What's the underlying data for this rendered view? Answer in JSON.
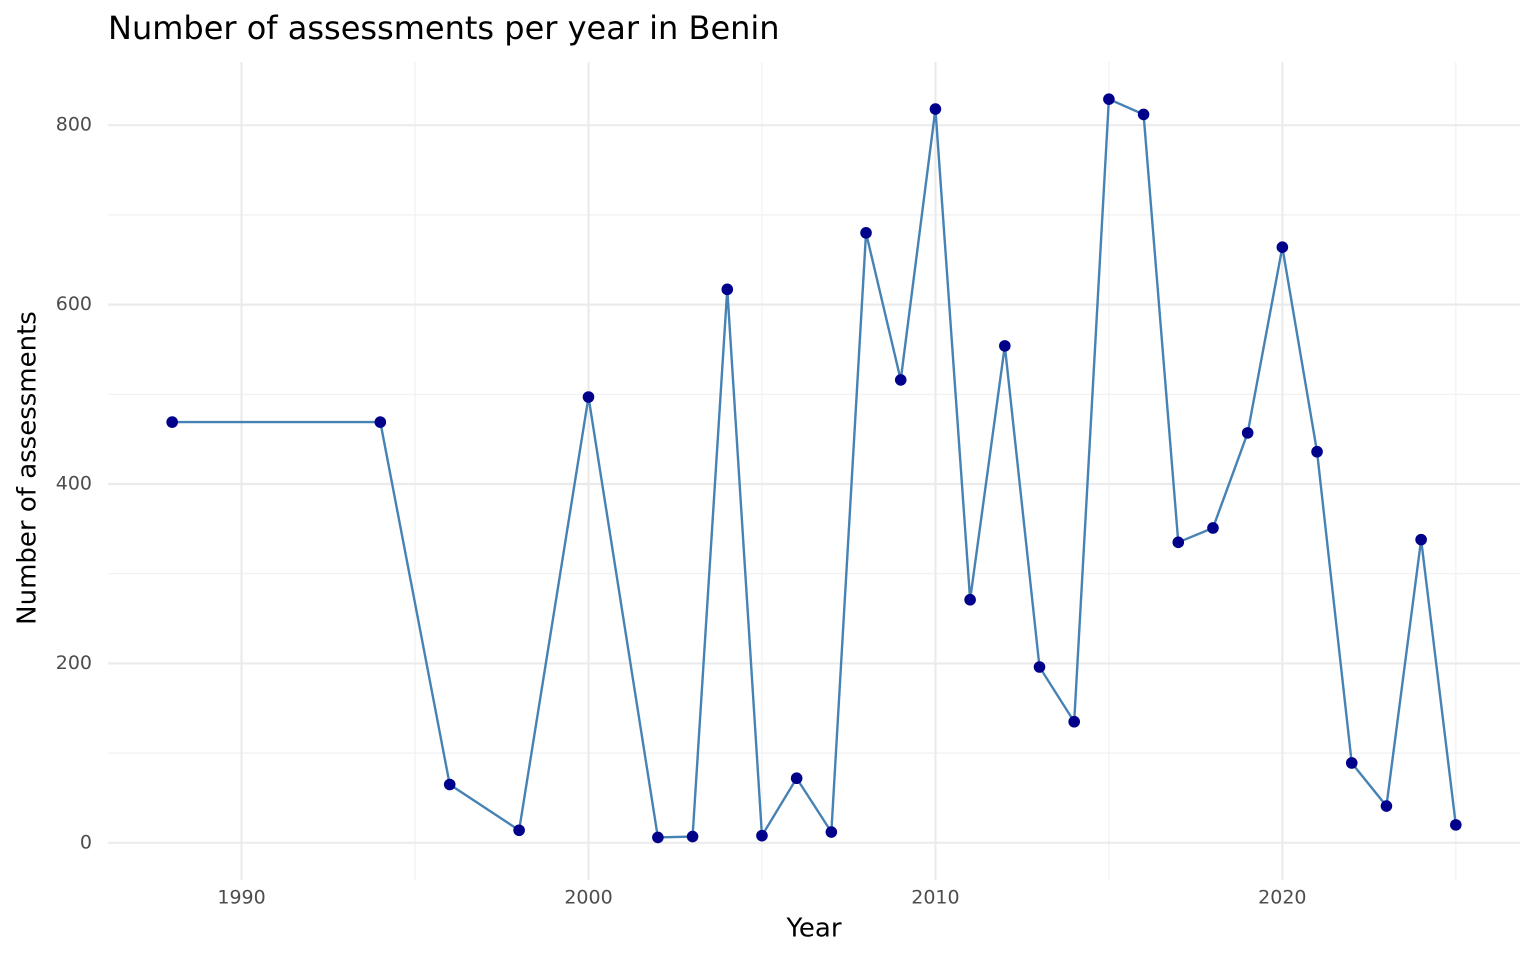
{
  "chart_data": {
    "type": "line",
    "title": "Number of assessments per year in Benin",
    "x_label": "Year",
    "y_label": "Number of assessments",
    "x": [
      1988,
      1994,
      1996,
      1998,
      2000,
      2002,
      2003,
      2004,
      2005,
      2006,
      2007,
      2008,
      2009,
      2010,
      2011,
      2012,
      2013,
      2014,
      2015,
      2016,
      2017,
      2018,
      2019,
      2020,
      2021,
      2022,
      2023,
      2024,
      2025
    ],
    "series": [
      {
        "name": "Number of assessments",
        "line_color": "#4682b4",
        "color": "#00008b",
        "values": [
          469,
          469,
          65,
          14,
          497,
          6,
          7,
          617,
          8,
          72,
          12,
          680,
          516,
          818,
          271,
          554,
          196,
          135,
          829,
          812,
          335,
          351,
          457,
          664,
          436,
          89,
          41,
          338,
          20
        ]
      }
    ],
    "xlim": [
      1986.15,
      2026.85
    ],
    "ylim": [
      -41.45,
      870.45
    ],
    "xticks": [
      1990,
      2000,
      2010,
      2020
    ],
    "yticks": [
      0,
      200,
      400,
      600,
      800
    ],
    "minor_xticks": [
      1995,
      2005,
      2015,
      2025
    ],
    "minor_yticks": [
      100,
      300,
      500,
      700
    ],
    "grid": true
  }
}
